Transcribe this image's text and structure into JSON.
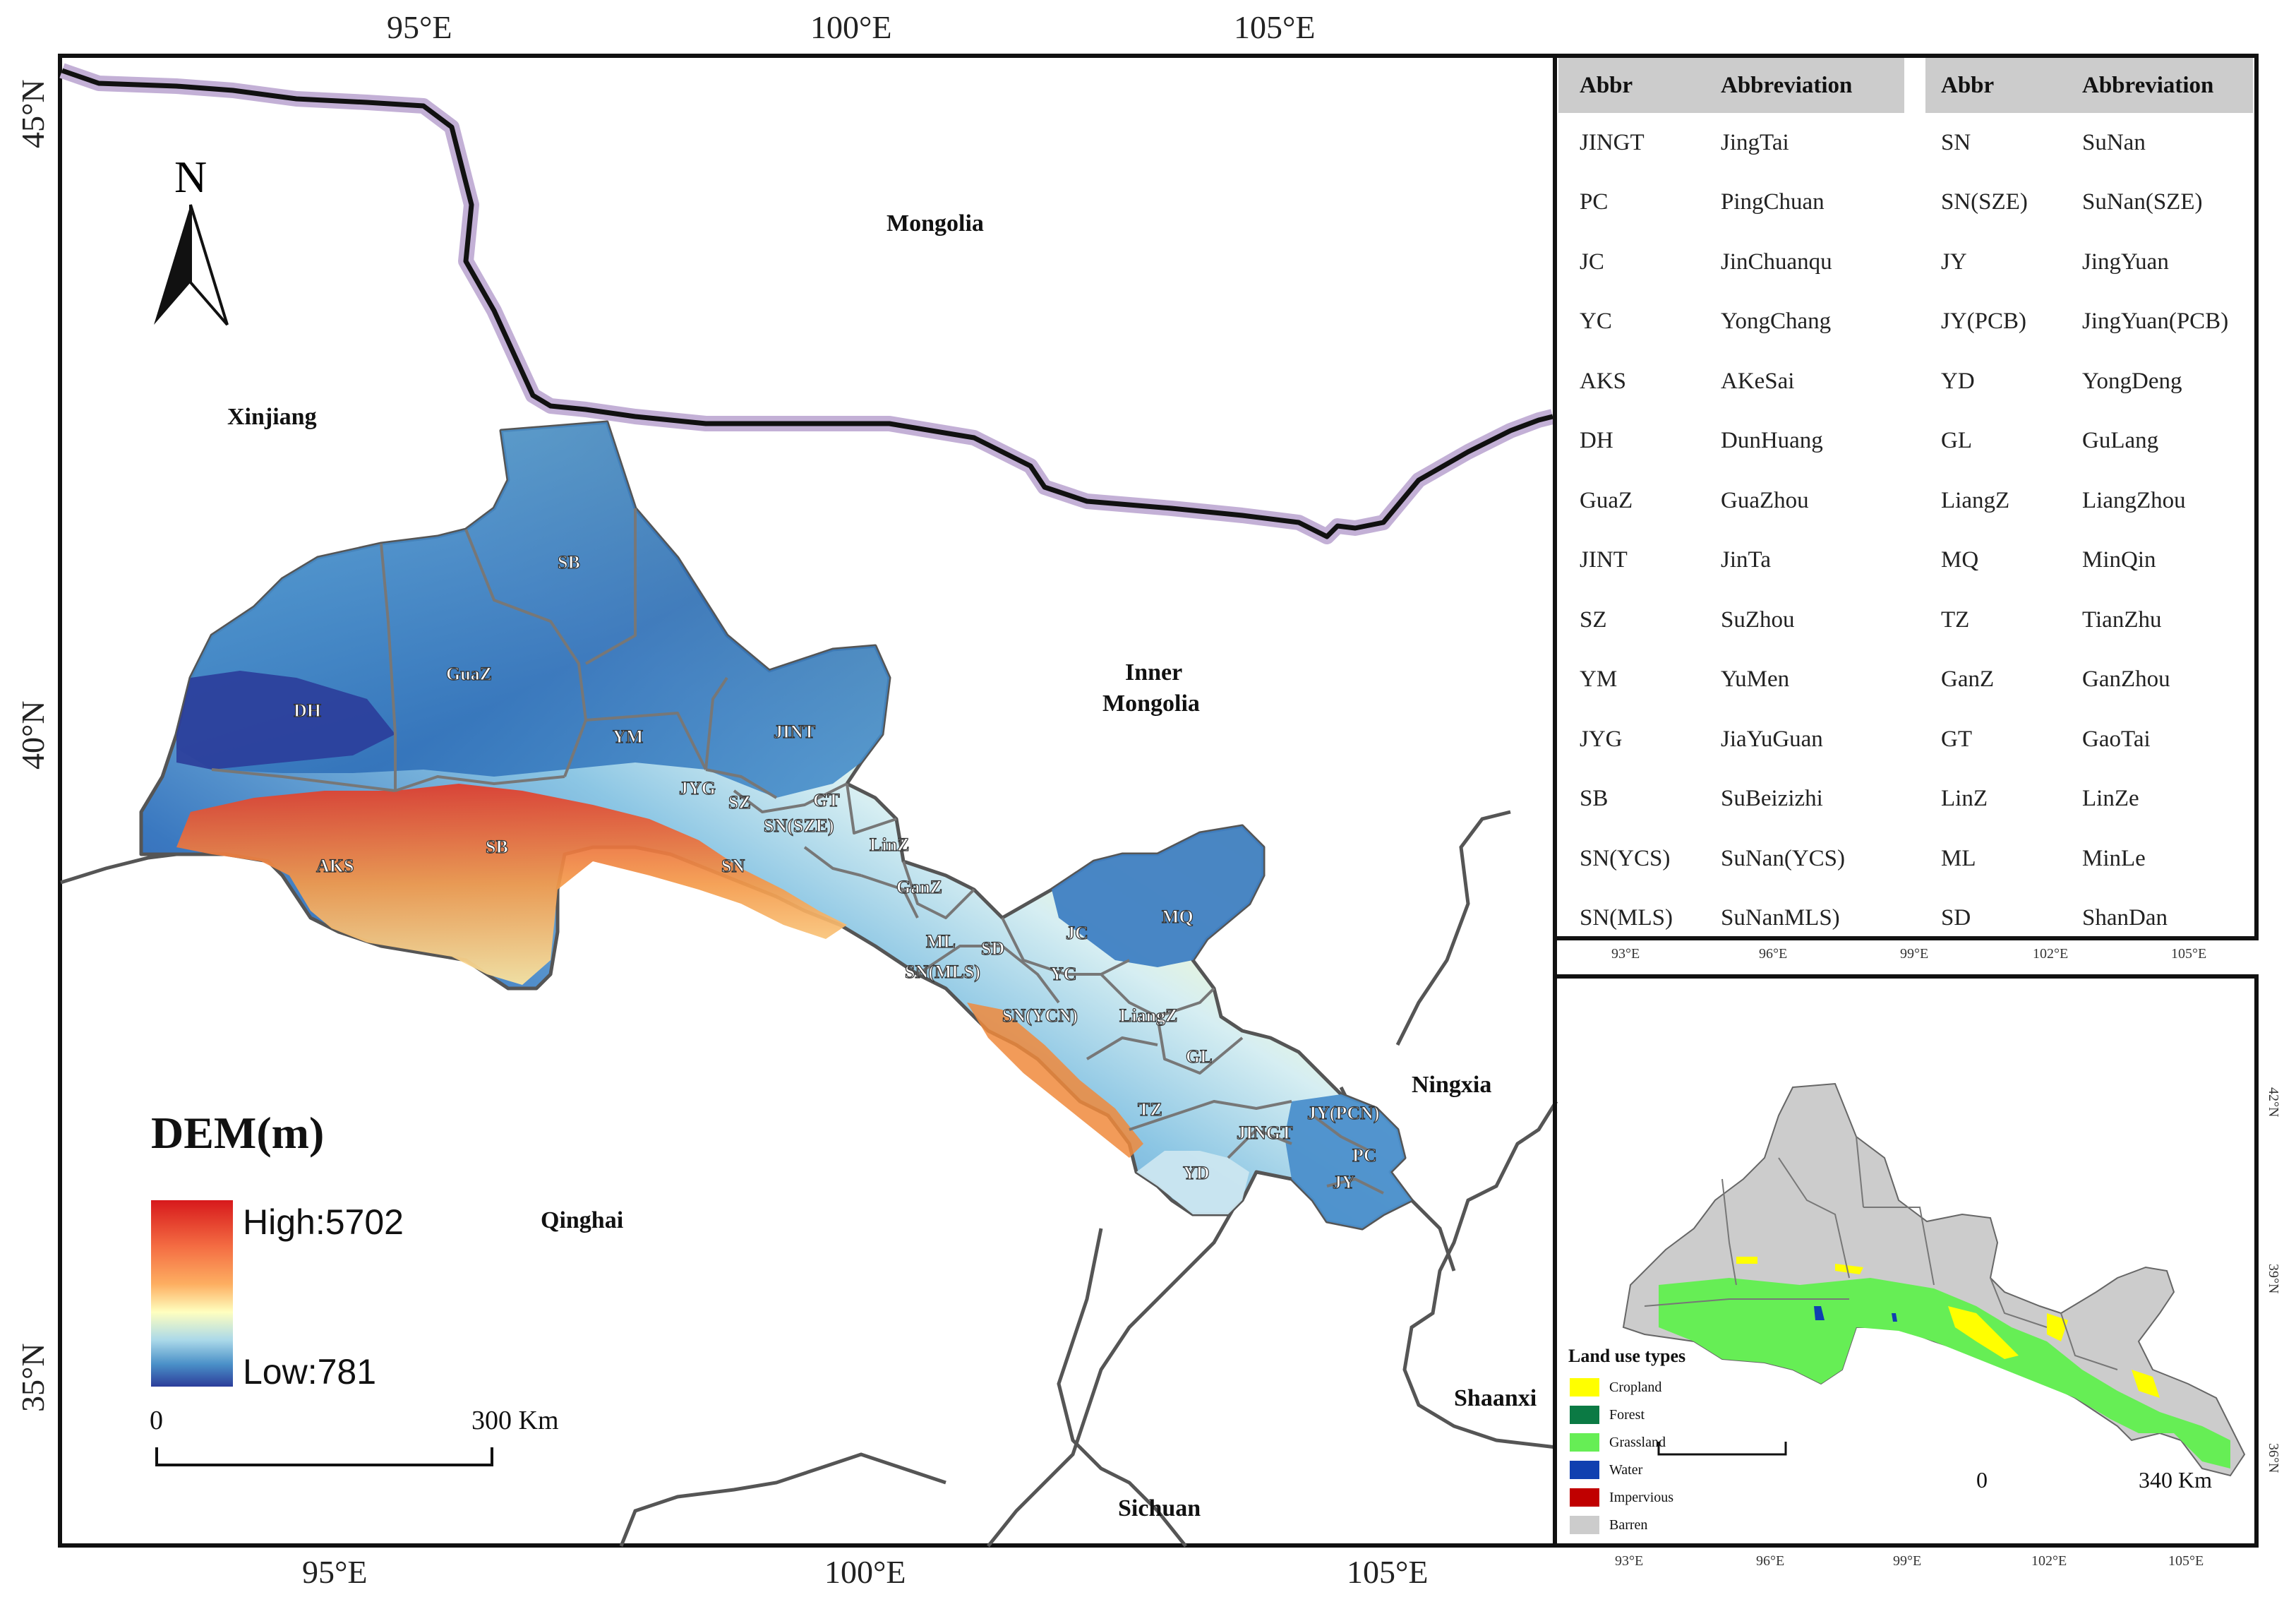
{
  "main_map": {
    "top_ticks": [
      "95°E",
      "100°E",
      "105°E"
    ],
    "bottom_ticks": [
      "95°E",
      "100°E",
      "105°E"
    ],
    "left_ticks": [
      "45°N",
      "40°N",
      "35°N"
    ],
    "regions": {
      "mongolia": "Mongolia",
      "xinjiang": "Xinjiang",
      "inner_mongolia_1": "Inner",
      "inner_mongolia_2": "Mongolia",
      "ningxia": "Ningxia",
      "qinghai": "Qinghai",
      "shaanxi": "Shaanxi",
      "sichuan": "Sichuan"
    },
    "county_labels": [
      "SB",
      "GuaZ",
      "DH",
      "YM",
      "JINT",
      "JYG",
      "SZ",
      "GT",
      "SN(SZE)",
      "LinZ",
      "AKS",
      "SB",
      "SN",
      "GanZ",
      "MQ",
      "JC",
      "ML",
      "SD",
      "SN(MLS)",
      "YC",
      "SN(YCN)",
      "LiangZ",
      "GL",
      "TZ",
      "JINGT",
      "JY(PCN)",
      "PC",
      "JY",
      "YD"
    ],
    "north_arrow": "N",
    "legend": {
      "title": "DEM(m)",
      "high": "High:5702",
      "low": "Low:781",
      "ramp_colors": [
        "#c9141c",
        "#f46d43",
        "#fdae61",
        "#ffffbf",
        "#abd9e9",
        "#4a90c8",
        "#2c4aa0"
      ]
    },
    "scale_bar": {
      "start": "0",
      "end": "300 Km"
    }
  },
  "abbr_table": {
    "headers": [
      "Abbr",
      "Abbreviation",
      "Abbr",
      "Abbreviation"
    ],
    "rows": [
      [
        "JINGT",
        "JingTai",
        "SN",
        "SuNan"
      ],
      [
        "PC",
        "PingChuan",
        "SN(SZE)",
        "SuNan(SZE)"
      ],
      [
        "JC",
        "JinChuanqu",
        "JY",
        "JingYuan"
      ],
      [
        "YC",
        "YongChang",
        "JY(PCB)",
        "JingYuan(PCB)"
      ],
      [
        "AKS",
        "AKeSai",
        "YD",
        "YongDeng"
      ],
      [
        "DH",
        "DunHuang",
        "GL",
        "GuLang"
      ],
      [
        "GuaZ",
        "GuaZhou",
        "LiangZ",
        "LiangZhou"
      ],
      [
        "JINT",
        "JinTa",
        "MQ",
        "MinQin"
      ],
      [
        "SZ",
        "SuZhou",
        "TZ",
        "TianZhu"
      ],
      [
        "YM",
        "YuMen",
        "GanZ",
        "GanZhou"
      ],
      [
        "JYG",
        "JiaYuGuan",
        "GT",
        "GaoTai"
      ],
      [
        "SB",
        "SuBeizizhi",
        "LinZ",
        "LinZe"
      ],
      [
        "SN(YCS)",
        "SuNan(YCS)",
        "ML",
        "MinLe"
      ],
      [
        "SN(MLS)",
        "SuNanMLS)",
        "SD",
        "ShanDan"
      ]
    ]
  },
  "inset": {
    "top_ticks": [
      "93°E",
      "96°E",
      "99°E",
      "102°E",
      "105°E"
    ],
    "bottom_ticks": [
      "93°E",
      "96°E",
      "99°E",
      "102°E",
      "105°E"
    ],
    "right_ticks": [
      "42°N",
      "39°N",
      "36°N"
    ],
    "legend_title": "Land use types",
    "legend_items": [
      {
        "label": "Cropland",
        "color": "#ffff00"
      },
      {
        "label": "Forest",
        "color": "#0b7a44"
      },
      {
        "label": "Grassland",
        "color": "#66ee55"
      },
      {
        "label": "Water",
        "color": "#1040b0"
      },
      {
        "label": "Impervious",
        "color": "#c00000"
      },
      {
        "label": "Barren",
        "color": "#cccccc"
      }
    ],
    "scale_bar": {
      "start": "0",
      "end": "340 Km"
    }
  }
}
